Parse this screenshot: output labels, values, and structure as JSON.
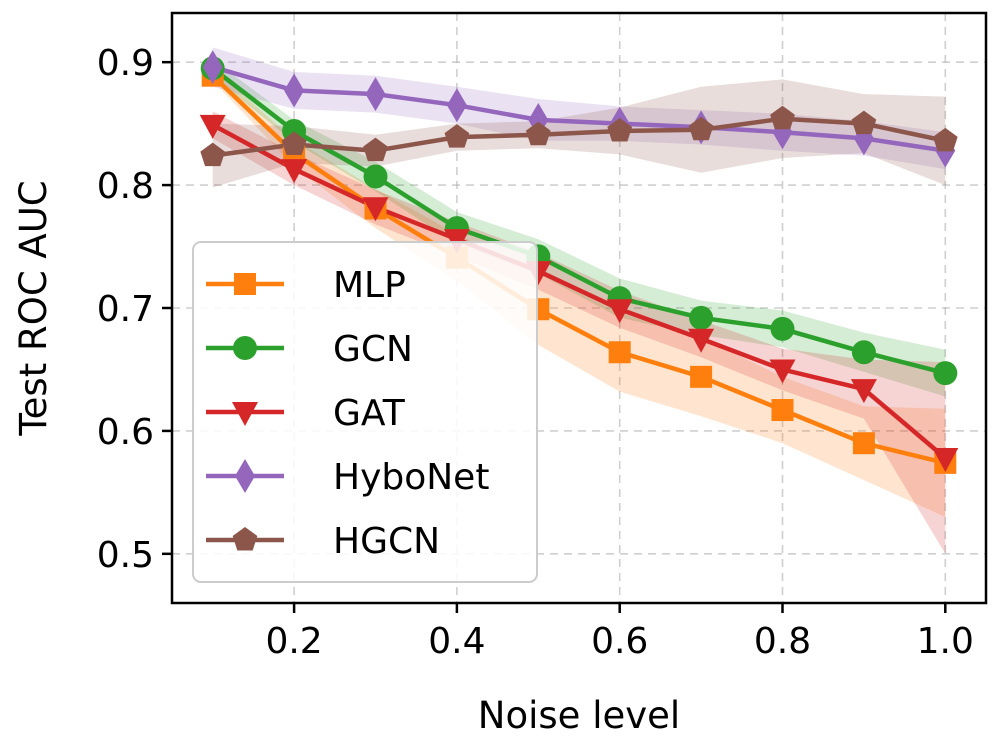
{
  "chart_data": {
    "type": "line",
    "title": "",
    "xlabel": "Noise level",
    "ylabel": "Test ROC AUC",
    "x": [
      0.1,
      0.2,
      0.3,
      0.4,
      0.5,
      0.6,
      0.7,
      0.8,
      0.9,
      1.0
    ],
    "xlim": [
      0.05,
      1.05
    ],
    "ylim": [
      0.46,
      0.94
    ],
    "xticks": [
      0.2,
      0.4,
      0.6,
      0.8,
      1.0
    ],
    "xtick_labels": [
      "0.2",
      "0.4",
      "0.6",
      "0.8",
      "1.0"
    ],
    "yticks": [
      0.5,
      0.6,
      0.7,
      0.8,
      0.9
    ],
    "ytick_labels": [
      "0.5",
      "0.6",
      "0.7",
      "0.8",
      "0.9"
    ],
    "grid": true,
    "legend_position": "center-left",
    "series": [
      {
        "name": "MLP",
        "color": "#ff7f0e",
        "marker": "square",
        "values": [
          0.889,
          0.826,
          0.781,
          0.741,
          0.699,
          0.664,
          0.644,
          0.617,
          0.59,
          0.574
        ],
        "lower": [
          0.885,
          0.815,
          0.765,
          0.722,
          0.67,
          0.632,
          0.612,
          0.59,
          0.56,
          0.53
        ],
        "upper": [
          0.895,
          0.837,
          0.797,
          0.76,
          0.728,
          0.696,
          0.676,
          0.644,
          0.62,
          0.618
        ]
      },
      {
        "name": "GCN",
        "color": "#2ca02c",
        "marker": "circle",
        "values": [
          0.895,
          0.844,
          0.807,
          0.765,
          0.742,
          0.708,
          0.692,
          0.683,
          0.664,
          0.647
        ],
        "lower": [
          0.888,
          0.835,
          0.795,
          0.752,
          0.728,
          0.692,
          0.678,
          0.668,
          0.648,
          0.628
        ],
        "upper": [
          0.902,
          0.853,
          0.819,
          0.778,
          0.756,
          0.724,
          0.706,
          0.698,
          0.68,
          0.666
        ]
      },
      {
        "name": "GAT",
        "color": "#d62728",
        "marker": "triangle-down",
        "values": [
          0.849,
          0.813,
          0.782,
          0.756,
          0.73,
          0.699,
          0.675,
          0.65,
          0.634,
          0.578
        ],
        "lower": [
          0.838,
          0.8,
          0.768,
          0.742,
          0.715,
          0.684,
          0.66,
          0.633,
          0.61,
          0.5
        ],
        "upper": [
          0.86,
          0.826,
          0.796,
          0.77,
          0.745,
          0.714,
          0.69,
          0.667,
          0.658,
          0.656
        ]
      },
      {
        "name": "HyboNet",
        "color": "#9467bd",
        "marker": "diamond",
        "values": [
          0.896,
          0.877,
          0.874,
          0.865,
          0.853,
          0.85,
          0.847,
          0.843,
          0.838,
          0.828
        ],
        "lower": [
          0.88,
          0.862,
          0.859,
          0.85,
          0.836,
          0.836,
          0.833,
          0.828,
          0.824,
          0.813
        ],
        "upper": [
          0.912,
          0.892,
          0.889,
          0.88,
          0.87,
          0.864,
          0.861,
          0.858,
          0.852,
          0.843
        ]
      },
      {
        "name": "HGCN",
        "color": "#8c564b",
        "marker": "pentagon",
        "values": [
          0.824,
          0.833,
          0.828,
          0.839,
          0.841,
          0.844,
          0.845,
          0.854,
          0.85,
          0.836
        ],
        "lower": [
          0.798,
          0.818,
          0.815,
          0.828,
          0.83,
          0.825,
          0.81,
          0.822,
          0.826,
          0.8
        ],
        "upper": [
          0.85,
          0.848,
          0.841,
          0.85,
          0.852,
          0.863,
          0.88,
          0.886,
          0.874,
          0.872
        ]
      }
    ]
  }
}
